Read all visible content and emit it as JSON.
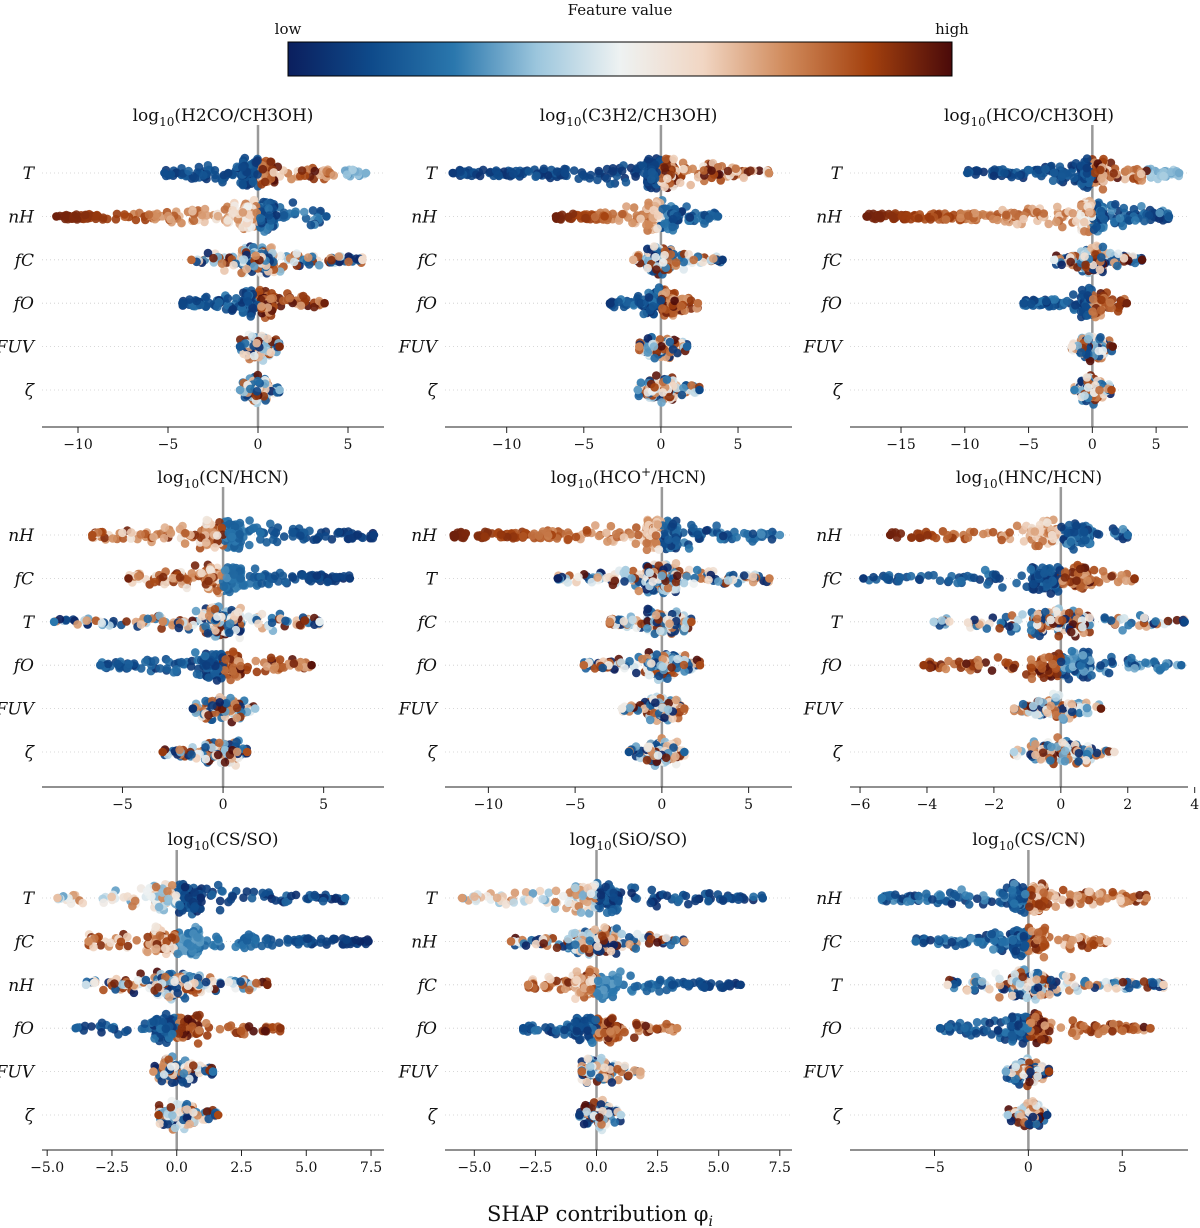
{
  "colorbar": {
    "title": "Feature value",
    "low_label": "low",
    "high_label": "high",
    "stops": [
      "#0b1f5e",
      "#0e4a8a",
      "#2a77ad",
      "#9cc6dd",
      "#eef2f2",
      "#f1d6c3",
      "#d08a5b",
      "#a4410e",
      "#4a0a0a"
    ]
  },
  "x_label": "SHAP contribution φ",
  "x_label_sub": "i",
  "chart_data": [
    {
      "type": "scatter",
      "subtype": "beeswarm",
      "title_prefix": "log",
      "title_sub": "10",
      "title_body": "(H2CO/CH3OH)",
      "xlim": [
        -12,
        7
      ],
      "xticks": [
        -10,
        -5,
        0,
        5
      ],
      "xtick_labels": [
        "−10",
        "−5",
        "0",
        "5"
      ],
      "features": [
        {
          "label": "T",
          "range": [
            -5.2,
            6.0
          ],
          "mode": "t1"
        },
        {
          "label": "nH",
          "range": [
            -11.2,
            3.8
          ],
          "mode": "nh1"
        },
        {
          "label": "fC",
          "range": [
            -3.7,
            5.8
          ],
          "mode": "mix"
        },
        {
          "label": "fO",
          "range": [
            -4.2,
            3.7
          ],
          "mode": "fo1"
        },
        {
          "label": "FUV",
          "range": [
            -1.0,
            1.2
          ],
          "mode": "mix"
        },
        {
          "label": "ζ",
          "range": [
            -1.0,
            1.2
          ],
          "mode": "mix"
        }
      ]
    },
    {
      "type": "scatter",
      "subtype": "beeswarm",
      "title_prefix": "log",
      "title_sub": "10",
      "title_body": "(C3H2/CH3OH)",
      "xlim": [
        -14,
        8.5
      ],
      "xticks": [
        -10,
        -5,
        0,
        5
      ],
      "xtick_labels": [
        "−10",
        "−5",
        "0",
        "5"
      ],
      "features": [
        {
          "label": "T",
          "range": [
            -13.5,
            7.0
          ],
          "mode": "t2"
        },
        {
          "label": "nH",
          "range": [
            -6.8,
            3.7
          ],
          "mode": "nh1"
        },
        {
          "label": "fC",
          "range": [
            -1.8,
            4.0
          ],
          "mode": "mix"
        },
        {
          "label": "fO",
          "range": [
            -3.3,
            2.4
          ],
          "mode": "fo1"
        },
        {
          "label": "FUV",
          "range": [
            -1.4,
            1.7
          ],
          "mode": "mix"
        },
        {
          "label": "ζ",
          "range": [
            -1.5,
            2.5
          ],
          "mode": "mix"
        }
      ]
    },
    {
      "type": "scatter",
      "subtype": "beeswarm",
      "title_prefix": "log",
      "title_sub": "10",
      "title_body": "(HCO/CH3OH)",
      "xlim": [
        -19,
        7.5
      ],
      "xticks": [
        -15,
        -10,
        -5,
        0,
        5
      ],
      "xtick_labels": [
        "−15",
        "−10",
        "−5",
        "0",
        "5"
      ],
      "features": [
        {
          "label": "T",
          "range": [
            -9.8,
            6.8
          ],
          "mode": "t1"
        },
        {
          "label": "nH",
          "range": [
            -17.7,
            6.0
          ],
          "mode": "nh1"
        },
        {
          "label": "fC",
          "range": [
            -3.0,
            3.9
          ],
          "mode": "mix"
        },
        {
          "label": "fO",
          "range": [
            -5.4,
            2.7
          ],
          "mode": "fo1"
        },
        {
          "label": "FUV",
          "range": [
            -1.6,
            1.6
          ],
          "mode": "mix"
        },
        {
          "label": "ζ",
          "range": [
            -1.4,
            1.5
          ],
          "mode": "mix"
        }
      ]
    },
    {
      "type": "scatter",
      "subtype": "beeswarm",
      "title_prefix": "log",
      "title_sub": "10",
      "title_body": "(CN/HCN)",
      "xlim": [
        -9,
        8
      ],
      "xticks": [
        -5,
        0,
        5
      ],
      "xtick_labels": [
        "−5",
        "0",
        "5"
      ],
      "features": [
        {
          "label": "nH",
          "range": [
            -6.5,
            7.5
          ],
          "mode": "nh2"
        },
        {
          "label": "fC",
          "range": [
            -4.7,
            6.3
          ],
          "mode": "nh2"
        },
        {
          "label": "T",
          "range": [
            -8.4,
            4.8
          ],
          "mode": "mix"
        },
        {
          "label": "fO",
          "range": [
            -6.1,
            4.4
          ],
          "mode": "fo1"
        },
        {
          "label": "FUV",
          "range": [
            -1.5,
            1.6
          ],
          "mode": "mix"
        },
        {
          "label": "ζ",
          "range": [
            -3.0,
            1.2
          ],
          "mode": "mix"
        }
      ]
    },
    {
      "type": "scatter",
      "subtype": "beeswarm",
      "title_prefix": "log",
      "title_sub": "10",
      "title_body_pre": "(HCO",
      "title_sup": "+",
      "title_body_post": "/HCN)",
      "xlim": [
        -12.5,
        7.5
      ],
      "xticks": [
        -10,
        -5,
        0,
        5
      ],
      "xtick_labels": [
        "−10",
        "−5",
        "0",
        "5"
      ],
      "features": [
        {
          "label": "nH",
          "range": [
            -12.0,
            6.8
          ],
          "mode": "nh1"
        },
        {
          "label": "T",
          "range": [
            -6.0,
            6.2
          ],
          "mode": "mix"
        },
        {
          "label": "fC",
          "range": [
            -3.0,
            1.7
          ],
          "mode": "mix"
        },
        {
          "label": "fO",
          "range": [
            -4.5,
            2.2
          ],
          "mode": "mix"
        },
        {
          "label": "FUV",
          "range": [
            -2.3,
            1.3
          ],
          "mode": "mix"
        },
        {
          "label": "ζ",
          "range": [
            -1.9,
            1.3
          ],
          "mode": "mix"
        }
      ]
    },
    {
      "type": "scatter",
      "subtype": "beeswarm",
      "title_prefix": "log",
      "title_sub": "10",
      "title_body": "(HNC/HCN)",
      "xlim": [
        -6.3,
        3.8
      ],
      "xticks": [
        -6,
        -4,
        -2,
        0,
        2,
        4
      ],
      "xtick_labels": [
        "−6",
        "−4",
        "−2",
        "0",
        "2",
        "4"
      ],
      "features": [
        {
          "label": "nH",
          "range": [
            -5.1,
            2.0
          ],
          "mode": "nh1"
        },
        {
          "label": "fC",
          "range": [
            -5.9,
            2.2
          ],
          "mode": "fo1"
        },
        {
          "label": "T",
          "range": [
            -3.8,
            3.7
          ],
          "mode": "mix"
        },
        {
          "label": "fO",
          "range": [
            -4.1,
            3.6
          ],
          "mode": "fo2"
        },
        {
          "label": "FUV",
          "range": [
            -1.4,
            1.2
          ],
          "mode": "mix"
        },
        {
          "label": "ζ",
          "range": [
            -1.4,
            1.6
          ],
          "mode": "mix"
        }
      ]
    },
    {
      "type": "scatter",
      "subtype": "beeswarm",
      "title_prefix": "log",
      "title_sub": "10",
      "title_body": "(CS/SO)",
      "xlim": [
        -5.2,
        8.0
      ],
      "xticks": [
        -5,
        -2.5,
        0,
        2.5,
        5,
        7.5
      ],
      "xtick_labels": [
        "−5.0",
        "−2.5",
        "0.0",
        "2.5",
        "5.0",
        "7.5"
      ],
      "features": [
        {
          "label": "T",
          "range": [
            -4.6,
            6.5
          ],
          "mode": "t3"
        },
        {
          "label": "fC",
          "range": [
            -3.4,
            7.4
          ],
          "mode": "nh2"
        },
        {
          "label": "nH",
          "range": [
            -3.5,
            3.5
          ],
          "mode": "mix"
        },
        {
          "label": "fO",
          "range": [
            -3.9,
            4.0
          ],
          "mode": "fo1"
        },
        {
          "label": "FUV",
          "range": [
            -0.9,
            1.4
          ],
          "mode": "mix"
        },
        {
          "label": "ζ",
          "range": [
            -0.7,
            1.6
          ],
          "mode": "mix"
        }
      ]
    },
    {
      "type": "scatter",
      "subtype": "beeswarm",
      "title_prefix": "log",
      "title_sub": "10",
      "title_body": "(SiO/SO)",
      "xlim": [
        -6.2,
        8.0
      ],
      "xticks": [
        -5,
        -2.5,
        0,
        2.5,
        5,
        7.5
      ],
      "xtick_labels": [
        "−5.0",
        "−2.5",
        "0.0",
        "2.5",
        "5.0",
        "7.5"
      ],
      "features": [
        {
          "label": "T",
          "range": [
            -5.5,
            6.8
          ],
          "mode": "t3"
        },
        {
          "label": "nH",
          "range": [
            -3.5,
            3.6
          ],
          "mode": "mix"
        },
        {
          "label": "fC",
          "range": [
            -2.8,
            5.9
          ],
          "mode": "nh2"
        },
        {
          "label": "fO",
          "range": [
            -3.0,
            3.3
          ],
          "mode": "fo1"
        },
        {
          "label": "FUV",
          "range": [
            -0.6,
            1.8
          ],
          "mode": "mix"
        },
        {
          "label": "ζ",
          "range": [
            -0.7,
            1.0
          ],
          "mode": "mix"
        }
      ]
    },
    {
      "type": "scatter",
      "subtype": "beeswarm",
      "title_prefix": "log",
      "title_sub": "10",
      "title_body": "(CS/CN)",
      "xlim": [
        -9.5,
        8.5
      ],
      "xticks": [
        -5,
        0,
        5
      ],
      "xtick_labels": [
        "−5",
        "0",
        "5"
      ],
      "features": [
        {
          "label": "nH",
          "range": [
            -7.8,
            6.3
          ],
          "mode": "cs_nh"
        },
        {
          "label": "fC",
          "range": [
            -6.0,
            4.2
          ],
          "mode": "cs_nh"
        },
        {
          "label": "T",
          "range": [
            -4.3,
            7.2
          ],
          "mode": "mix"
        },
        {
          "label": "fO",
          "range": [
            -4.7,
            6.5
          ],
          "mode": "fo1"
        },
        {
          "label": "FUV",
          "range": [
            -1.2,
            1.1
          ],
          "mode": "mix"
        },
        {
          "label": "ζ",
          "range": [
            -1.1,
            1.0
          ],
          "mode": "mix"
        }
      ]
    }
  ]
}
